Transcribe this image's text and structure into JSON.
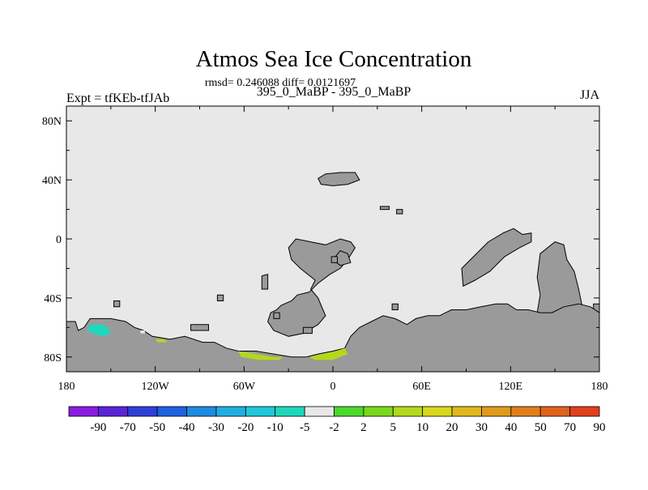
{
  "chart_data": {
    "type": "heatmap",
    "title": "Atmos Sea Ice Concentration",
    "stats_line": "rmsd= 0.246088 diff= 0.0121697",
    "subtitle_center": "395_0_MaBP - 395_0_MaBP",
    "subtitle_left": "Expt = tfKEb-tfJAb",
    "subtitle_right": "JJA",
    "x_ticks": [
      {
        "value": -180,
        "label": "180"
      },
      {
        "value": -120,
        "label": "120W"
      },
      {
        "value": -60,
        "label": "60W"
      },
      {
        "value": 0,
        "label": "0"
      },
      {
        "value": 60,
        "label": "60E"
      },
      {
        "value": 120,
        "label": "120E"
      },
      {
        "value": 180,
        "label": "180"
      }
    ],
    "y_ticks": [
      {
        "value": 80,
        "label": "80N"
      },
      {
        "value": 40,
        "label": "40N"
      },
      {
        "value": 0,
        "label": "0"
      },
      {
        "value": -40,
        "label": "40S"
      },
      {
        "value": -80,
        "label": "80S"
      }
    ],
    "xlim": [
      -180,
      180
    ],
    "ylim": [
      -90,
      90
    ],
    "background_color": "#e8e8e8",
    "land_color": "#9a9a9a",
    "colorbar": {
      "colors": [
        "#8a1ce0",
        "#5a24d8",
        "#2e3fd8",
        "#1e62e0",
        "#1e8ae0",
        "#1eaee0",
        "#1ec8d8",
        "#1ed8bc",
        "#e8e8e8",
        "#4cd82c",
        "#7ad81c",
        "#b4d81c",
        "#d8d81c",
        "#e0b81c",
        "#e09a1c",
        "#e07e1c",
        "#e0621c",
        "#e0401c"
      ],
      "labels": [
        "-90",
        "-70",
        "-50",
        "-40",
        "-30",
        "-20",
        "-10",
        "-5",
        "-2",
        "2",
        "5",
        "10",
        "20",
        "30",
        "40",
        "50",
        "70",
        "90"
      ]
    },
    "land_regions": [
      {
        "name": "north-atlantic-land",
        "points": [
          [
            -5,
            44
          ],
          [
            5,
            45
          ],
          [
            15,
            45
          ],
          [
            18,
            40
          ],
          [
            10,
            37
          ],
          [
            0,
            36
          ],
          [
            -8,
            37
          ],
          [
            -10,
            41
          ]
        ]
      },
      {
        "name": "arabia-land",
        "points": [
          [
            32,
            22
          ],
          [
            38,
            22
          ],
          [
            38,
            20
          ],
          [
            32,
            20
          ]
        ]
      },
      {
        "name": "gulf-land",
        "points": [
          [
            43,
            20
          ],
          [
            47,
            20
          ],
          [
            47,
            17
          ],
          [
            43,
            17
          ]
        ]
      },
      {
        "name": "africa-land",
        "points": [
          [
            -25,
            0
          ],
          [
            -15,
            -2
          ],
          [
            -5,
            -4
          ],
          [
            5,
            0
          ],
          [
            12,
            -2
          ],
          [
            15,
            -6
          ],
          [
            10,
            -14
          ],
          [
            5,
            -20
          ],
          [
            -2,
            -24
          ],
          [
            -10,
            -30
          ],
          [
            -16,
            -36
          ],
          [
            -24,
            -38
          ],
          [
            -28,
            -42
          ],
          [
            -35,
            -45
          ],
          [
            -38,
            -48
          ],
          [
            -42,
            -50
          ],
          [
            -44,
            -56
          ],
          [
            -40,
            -62
          ],
          [
            -30,
            -66
          ],
          [
            -20,
            -64
          ],
          [
            -10,
            -58
          ],
          [
            -5,
            -52
          ],
          [
            -8,
            -45
          ],
          [
            -10,
            -40
          ],
          [
            -15,
            -34
          ],
          [
            -12,
            -28
          ],
          [
            -22,
            -20
          ],
          [
            -28,
            -14
          ],
          [
            -30,
            -6
          ]
        ]
      },
      {
        "name": "central-africa-land",
        "points": [
          [
            5,
            -8
          ],
          [
            10,
            -10
          ],
          [
            12,
            -16
          ],
          [
            5,
            -18
          ],
          [
            0,
            -14
          ]
        ]
      },
      {
        "name": "west-island-land",
        "points": [
          [
            -48,
            -25
          ],
          [
            -44,
            -24
          ],
          [
            -44,
            -34
          ],
          [
            -48,
            -34
          ]
        ]
      },
      {
        "name": "south-atlantic-island-land",
        "points": [
          [
            -96,
            -58
          ],
          [
            -84,
            -58
          ],
          [
            -84,
            -62
          ],
          [
            -96,
            -62
          ]
        ]
      },
      {
        "name": "mid-ocean-islands-land",
        "points": [
          [
            -20,
            -60
          ],
          [
            -14,
            -60
          ],
          [
            -14,
            -64
          ],
          [
            -20,
            -64
          ]
        ]
      },
      {
        "name": "indo-pacific-land",
        "points": [
          [
            87,
            -20
          ],
          [
            95,
            -12
          ],
          [
            105,
            -2
          ],
          [
            115,
            4
          ],
          [
            122,
            7
          ],
          [
            128,
            3
          ],
          [
            134,
            4
          ],
          [
            134,
            -2
          ],
          [
            126,
            -6
          ],
          [
            116,
            -12
          ],
          [
            106,
            -22
          ],
          [
            96,
            -28
          ],
          [
            88,
            -32
          ]
        ]
      },
      {
        "name": "australia-land",
        "points": [
          [
            140,
            -10
          ],
          [
            150,
            -2
          ],
          [
            156,
            -4
          ],
          [
            158,
            -14
          ],
          [
            163,
            -22
          ],
          [
            166,
            -34
          ],
          [
            168,
            -44
          ],
          [
            172,
            -50
          ],
          [
            162,
            -56
          ],
          [
            150,
            -56
          ],
          [
            138,
            -50
          ],
          [
            140,
            -38
          ],
          [
            138,
            -26
          ]
        ]
      },
      {
        "name": "islands-east-land",
        "points": [
          [
            180,
            -44
          ],
          [
            176,
            -44
          ],
          [
            176,
            -50
          ],
          [
            180,
            -50
          ]
        ]
      },
      {
        "name": "small-island-1-land",
        "points": [
          [
            -148,
            -42
          ],
          [
            -144,
            -42
          ],
          [
            -144,
            -46
          ],
          [
            -148,
            -46
          ]
        ]
      },
      {
        "name": "small-island-2-land",
        "points": [
          [
            -78,
            -38
          ],
          [
            -74,
            -38
          ],
          [
            -74,
            -42
          ],
          [
            -78,
            -42
          ]
        ]
      },
      {
        "name": "small-island-3-land",
        "points": [
          [
            -1,
            -12
          ],
          [
            3,
            -12
          ],
          [
            3,
            -16
          ],
          [
            -1,
            -16
          ]
        ]
      },
      {
        "name": "small-island-4-land",
        "points": [
          [
            -40,
            -50
          ],
          [
            -36,
            -50
          ],
          [
            -36,
            -54
          ],
          [
            -40,
            -54
          ]
        ]
      },
      {
        "name": "small-island-5-land",
        "points": [
          [
            40,
            -44
          ],
          [
            44,
            -44
          ],
          [
            44,
            -48
          ],
          [
            40,
            -48
          ]
        ]
      },
      {
        "name": "antarctic-and-southern-land",
        "points": [
          [
            -180,
            -56
          ],
          [
            -174,
            -56
          ],
          [
            -172,
            -62
          ],
          [
            -168,
            -60
          ],
          [
            -164,
            -54
          ],
          [
            -150,
            -54
          ],
          [
            -140,
            -56
          ],
          [
            -134,
            -60
          ],
          [
            -128,
            -62
          ],
          [
            -122,
            -66
          ],
          [
            -110,
            -68
          ],
          [
            -100,
            -66
          ],
          [
            -88,
            -70
          ],
          [
            -80,
            -70
          ],
          [
            -72,
            -74
          ],
          [
            -64,
            -76
          ],
          [
            -52,
            -76
          ],
          [
            -40,
            -78
          ],
          [
            -28,
            -80
          ],
          [
            -18,
            -80
          ],
          [
            -10,
            -78
          ],
          [
            0,
            -76
          ],
          [
            8,
            -74
          ],
          [
            12,
            -66
          ],
          [
            18,
            -60
          ],
          [
            26,
            -56
          ],
          [
            34,
            -52
          ],
          [
            42,
            -54
          ],
          [
            50,
            -58
          ],
          [
            56,
            -54
          ],
          [
            64,
            -52
          ],
          [
            72,
            -52
          ],
          [
            80,
            -48
          ],
          [
            90,
            -48
          ],
          [
            100,
            -46
          ],
          [
            110,
            -44
          ],
          [
            118,
            -44
          ],
          [
            124,
            -48
          ],
          [
            132,
            -48
          ],
          [
            140,
            -50
          ],
          [
            148,
            -50
          ],
          [
            156,
            -46
          ],
          [
            166,
            -44
          ],
          [
            174,
            -46
          ],
          [
            180,
            -50
          ],
          [
            180,
            -90
          ],
          [
            -180,
            -90
          ]
        ]
      }
    ],
    "anomaly_regions": [
      {
        "name": "ross-sea-anomaly",
        "value": -10,
        "points": [
          [
            -164,
            -58
          ],
          [
            -156,
            -58
          ],
          [
            -152,
            -60
          ],
          [
            -150,
            -64
          ],
          [
            -156,
            -66
          ],
          [
            -162,
            -64
          ],
          [
            -166,
            -62
          ]
        ]
      },
      {
        "name": "amundsen-anomaly",
        "value": 5,
        "points": [
          [
            -120,
            -68
          ],
          [
            -114,
            -68
          ],
          [
            -112,
            -70
          ],
          [
            -118,
            -70
          ]
        ]
      },
      {
        "name": "weddell-west-anomaly",
        "value": 5,
        "points": [
          [
            -64,
            -76
          ],
          [
            -52,
            -78
          ],
          [
            -40,
            -80
          ],
          [
            -34,
            -80
          ],
          [
            -36,
            -82
          ],
          [
            -50,
            -82
          ],
          [
            -62,
            -80
          ]
        ]
      },
      {
        "name": "weddell-east-anomaly",
        "value": 5,
        "points": [
          [
            -16,
            -80
          ],
          [
            -8,
            -78
          ],
          [
            2,
            -76
          ],
          [
            8,
            -74
          ],
          [
            10,
            -78
          ],
          [
            0,
            -82
          ],
          [
            -12,
            -82
          ]
        ]
      },
      {
        "name": "small-blue-anomaly",
        "value": -5,
        "points": [
          [
            -130,
            -62
          ],
          [
            -127,
            -62
          ],
          [
            -127,
            -64
          ],
          [
            -130,
            -64
          ]
        ]
      }
    ]
  }
}
